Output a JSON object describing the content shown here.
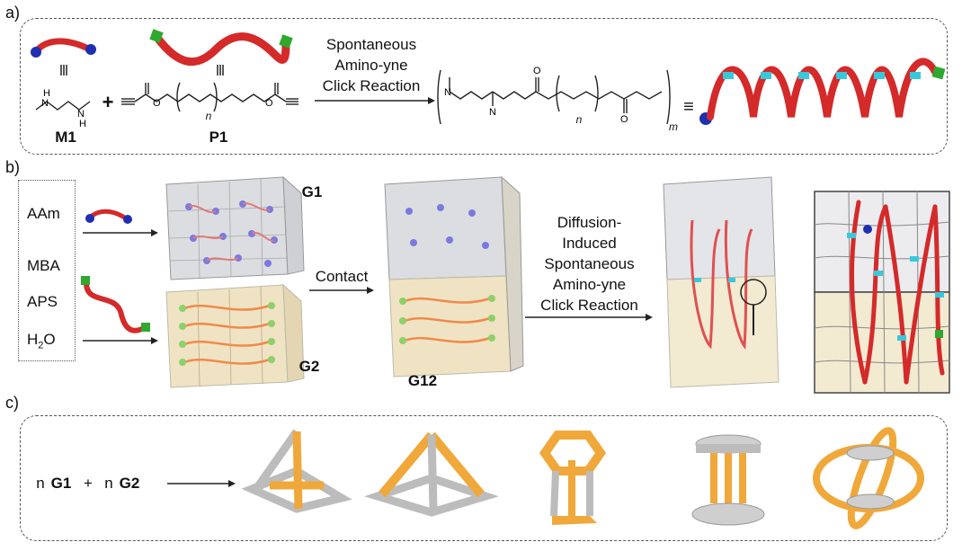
{
  "panels": {
    "a": "a)",
    "b": "b)",
    "c": "c)"
  },
  "section_a": {
    "m1_label": "M1",
    "p1_label": "P1",
    "plus": "+",
    "reaction_line1": "Spontaneous",
    "reaction_line2": "Amino-yne",
    "reaction_line3": "Click Reaction",
    "equiv_symbol": "≡",
    "n_sub": "n",
    "m_sub": "m"
  },
  "section_b": {
    "reagents": [
      "AAm",
      "MBA",
      "APS",
      "H2O"
    ],
    "g1_label": "G1",
    "g2_label": "G2",
    "g12_label": "G12",
    "contact_label": "Contact",
    "diffusion_line1": "Diffusion-",
    "diffusion_line2": "Induced",
    "diffusion_line3": "Spontaneous",
    "diffusion_line4": "Amino-yne",
    "diffusion_line5": "Click Reaction"
  },
  "section_c": {
    "coef1": "n",
    "g1": "G1",
    "plus": "+",
    "coef2": "n",
    "g2": "G2"
  },
  "colors": {
    "polymer_red": "#d42a2a",
    "blue_end": "#1f2fb0",
    "green_end": "#2ea82e",
    "cyan_link": "#38c8dc",
    "gel_gray": "#dcdde0",
    "gel_beige": "#efe3c4",
    "structure_orange": "#f0a83a",
    "structure_gray": "#bcbcbc"
  }
}
